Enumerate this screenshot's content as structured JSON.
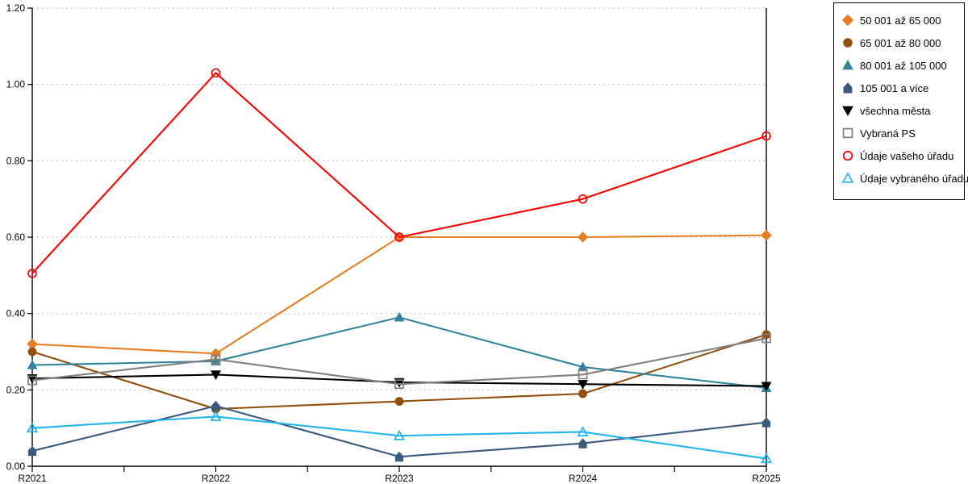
{
  "chart_data": {
    "type": "line",
    "title": "",
    "xlabel": "",
    "ylabel": "",
    "categories": [
      "R2021",
      "R2022",
      "R2023",
      "R2024",
      "R2025"
    ],
    "ylim": [
      0,
      1.2
    ],
    "yticks": [
      {
        "value": 0.0,
        "label": "0.00"
      },
      {
        "value": 0.2,
        "label": "0.20"
      },
      {
        "value": 0.4,
        "label": "0.40"
      },
      {
        "value": 0.6,
        "label": "0.60"
      },
      {
        "value": 0.8,
        "label": "0.80"
      },
      {
        "value": 1.0,
        "label": "1.00"
      },
      {
        "value": 1.2,
        "label": "1.20"
      }
    ],
    "grid": "horizontal-dotted",
    "grid_color": "#c2c2c2",
    "axis_color": "#000000",
    "legend_position": "top-right-outside",
    "series": [
      {
        "name": "50 001 až 65 000",
        "color": "#E87E23",
        "marker": "diamond",
        "fill": "filled",
        "values": [
          0.32,
          0.295,
          0.6,
          0.6,
          0.605
        ]
      },
      {
        "name": "65 001 až 80 000",
        "color": "#92500E",
        "marker": "circle",
        "fill": "filled",
        "values": [
          0.3,
          0.15,
          0.17,
          0.19,
          0.345
        ]
      },
      {
        "name": "80 001 až 105 000",
        "color": "#31849B",
        "marker": "triangle-up",
        "fill": "filled",
        "values": [
          0.265,
          0.275,
          0.39,
          0.26,
          0.205
        ]
      },
      {
        "name": "105 001 a více",
        "color": "#3A5A7E",
        "marker": "house",
        "fill": "filled",
        "values": [
          0.04,
          0.158,
          0.025,
          0.06,
          0.115
        ]
      },
      {
        "name": "všechna města",
        "color": "#000000",
        "marker": "triangle-down",
        "fill": "filled",
        "values": [
          0.23,
          0.24,
          0.22,
          0.215,
          0.21
        ]
      },
      {
        "name": "Vybraná PS",
        "color": "#7F7F7F",
        "marker": "square",
        "fill": "hollow",
        "values": [
          0.225,
          0.28,
          0.215,
          0.24,
          0.335
        ]
      },
      {
        "name": "Údaje vašeho úřadu",
        "color": "#FC0000",
        "marker": "circle",
        "fill": "hollow",
        "values": [
          0.505,
          1.03,
          0.6,
          0.7,
          0.865
        ]
      },
      {
        "name": "Údaje vybraného úřadu",
        "color": "#1FB4F0",
        "marker": "triangle-up",
        "fill": "hollow",
        "values": [
          0.1,
          0.13,
          0.08,
          0.09,
          0.02
        ]
      }
    ]
  }
}
